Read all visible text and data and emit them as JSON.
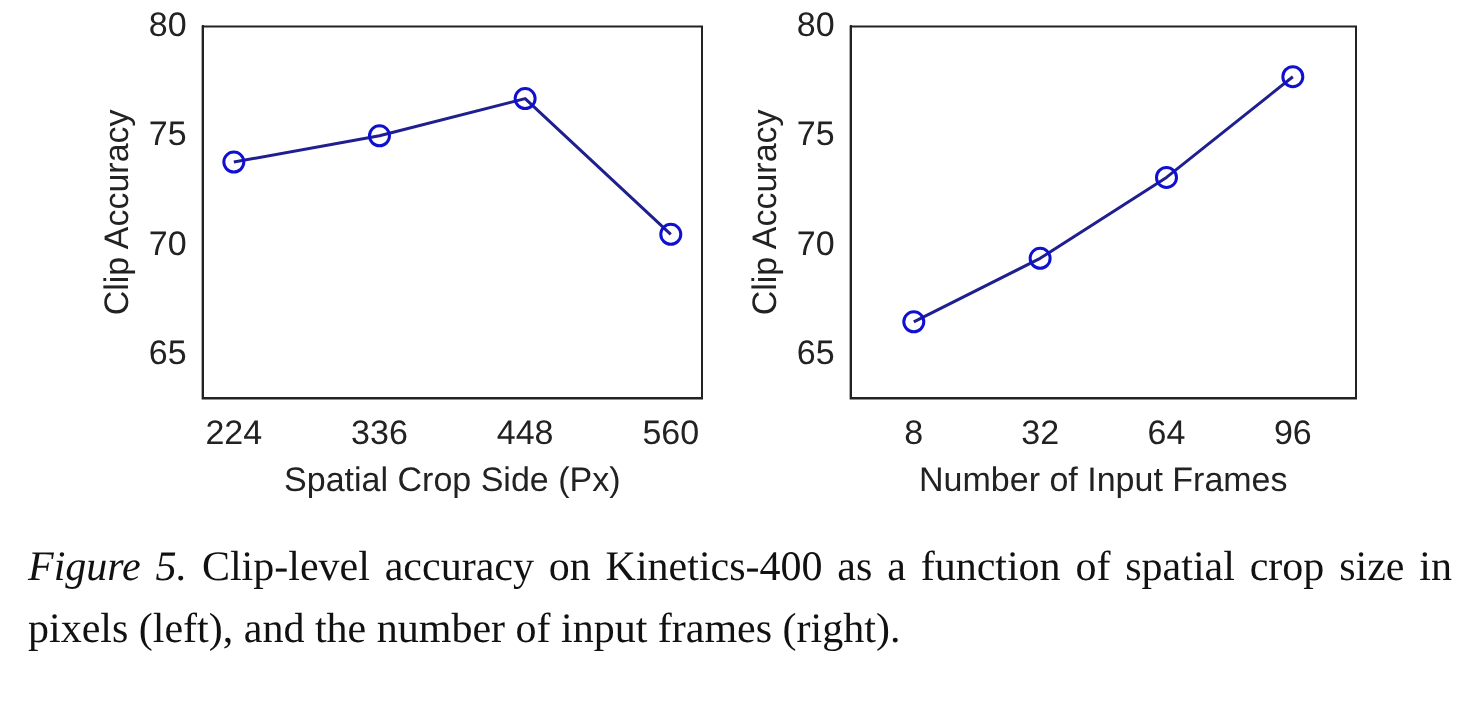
{
  "chart_data": [
    {
      "type": "line",
      "xlabel": "Spatial Crop Side (Px)",
      "ylabel": "Clip Accuracy",
      "x": [
        224,
        336,
        448,
        560
      ],
      "xlim": [
        200,
        584
      ],
      "xticks": [
        224,
        336,
        448,
        560
      ],
      "ylim": [
        63,
        80
      ],
      "yticks": [
        65,
        70,
        75,
        80
      ],
      "grid": false,
      "legend": false,
      "marker": "circle",
      "line_style": "solid",
      "series": [
        {
          "color": "#1f1f8f",
          "values": [
            73.8,
            75.0,
            76.7,
            70.5
          ]
        }
      ]
    },
    {
      "type": "line",
      "xlabel": "Number of Input Frames",
      "ylabel": "Clip Accuracy",
      "categories": [
        "8",
        "32",
        "64",
        "96"
      ],
      "ylim": [
        63,
        80
      ],
      "yticks": [
        65,
        70,
        75,
        80
      ],
      "grid": false,
      "legend": false,
      "marker": "circle",
      "line_style": "solid",
      "series": [
        {
          "color": "#1f1f8f",
          "values": [
            66.5,
            69.4,
            73.1,
            77.7
          ]
        }
      ],
      "annotations": [
        "Figure 5.",
        "Clip-level accuracy on Kinetics-400 as a function of spatial crop size in pixels (left), and the number of input frames (right)."
      ]
    }
  ]
}
